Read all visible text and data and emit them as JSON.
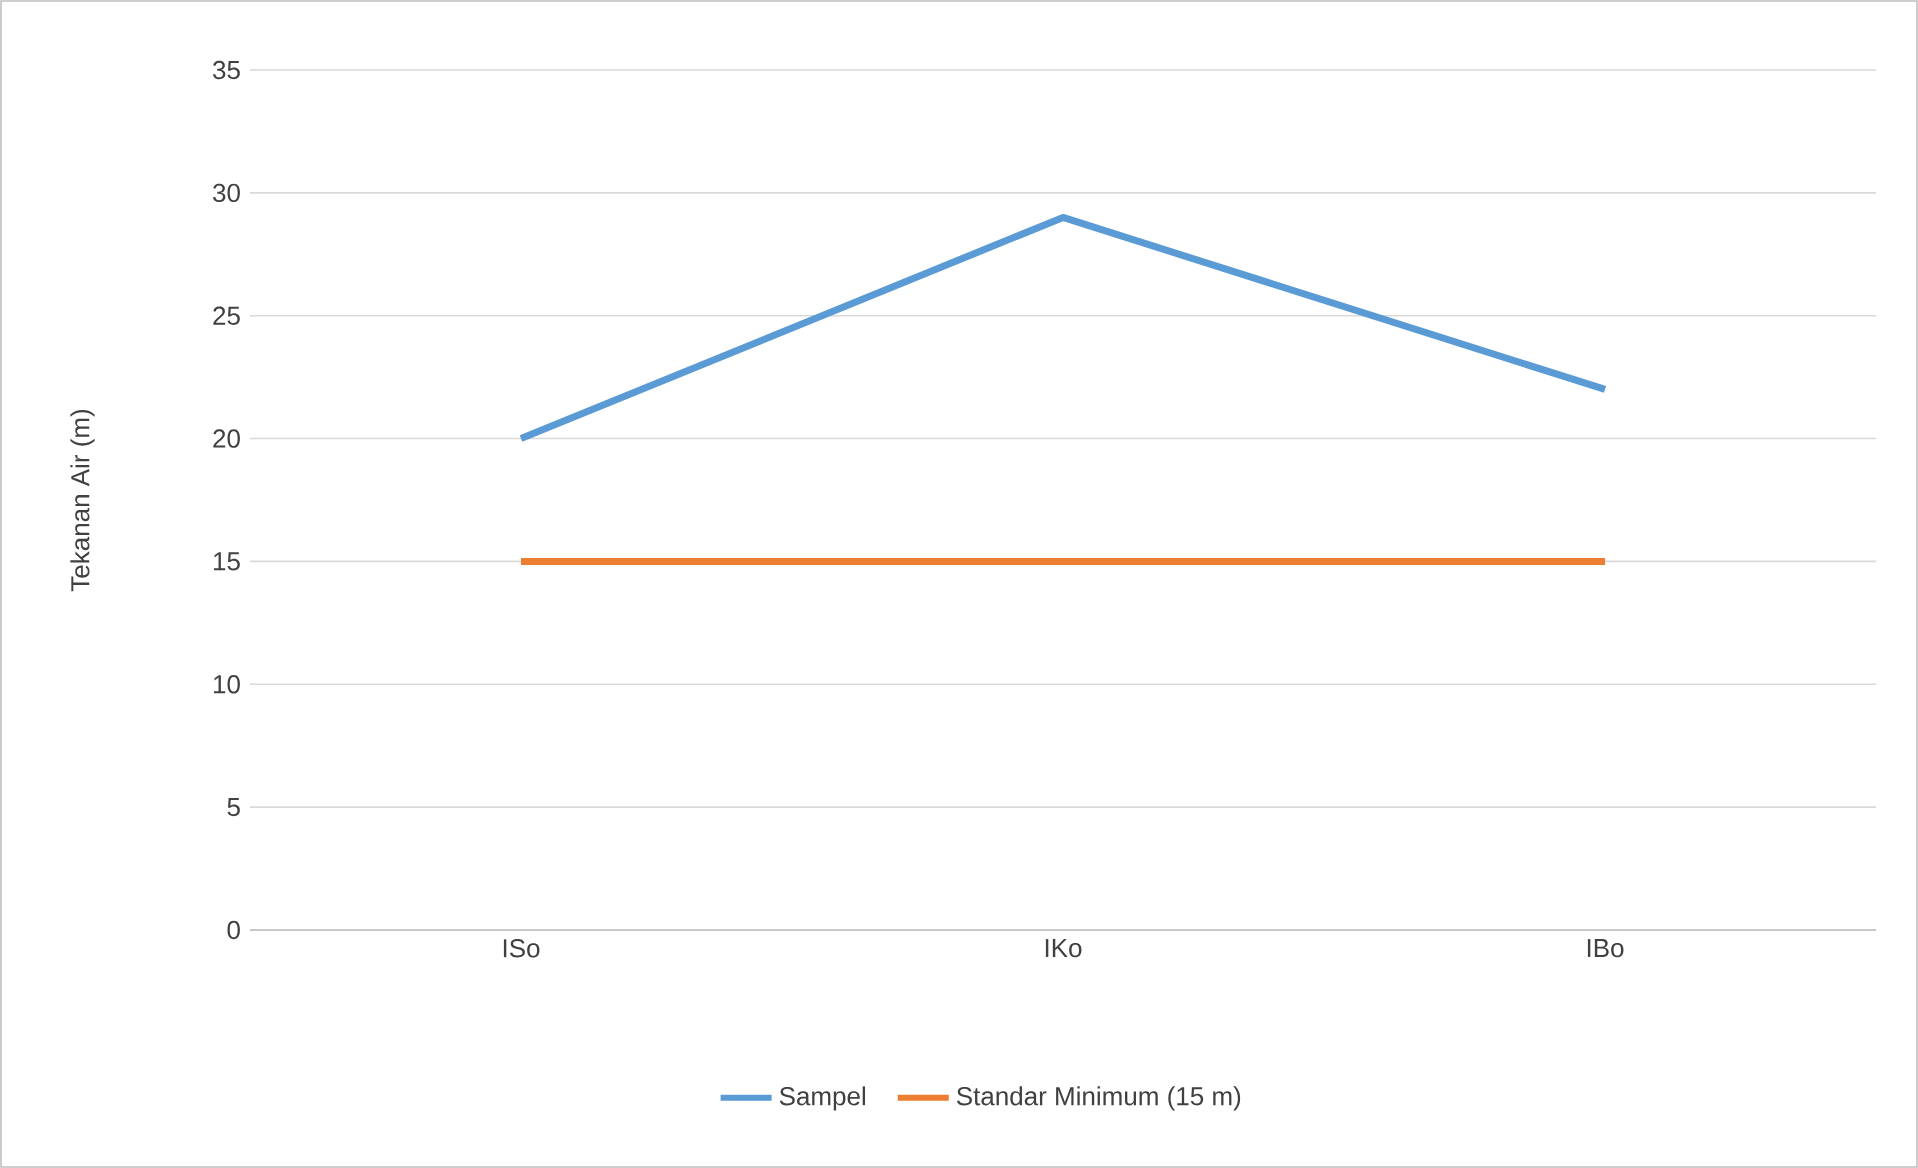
{
  "chart_data": {
    "type": "line",
    "ylabel": "Tekanan Air (m)",
    "categories": [
      "ISo",
      "IKo",
      "IBo"
    ],
    "series": [
      {
        "name": "Sampel",
        "color": "#5b9bd5",
        "values": [
          20,
          29,
          22
        ]
      },
      {
        "name": "Standar Minimum (15 m)",
        "color": "#ed7d31",
        "values": [
          15,
          15,
          15
        ]
      }
    ],
    "ylim": [
      0,
      35
    ],
    "yticks": [
      0,
      5,
      10,
      15,
      20,
      25,
      30,
      35
    ],
    "grid": "y",
    "legend": "bottom",
    "marker": "none",
    "line_style": "solid"
  }
}
